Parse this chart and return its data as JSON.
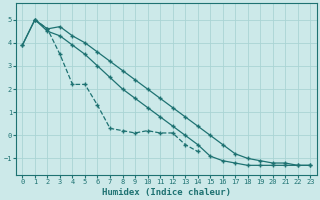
{
  "xlabel": "Humidex (Indice chaleur)",
  "xlim": [
    -0.5,
    23.5
  ],
  "ylim": [
    -1.7,
    5.7
  ],
  "yticks": [
    -1,
    0,
    1,
    2,
    3,
    4,
    5
  ],
  "xticks": [
    0,
    1,
    2,
    3,
    4,
    5,
    6,
    7,
    8,
    9,
    10,
    11,
    12,
    13,
    14,
    15,
    16,
    17,
    18,
    19,
    20,
    21,
    22,
    23
  ],
  "background_color": "#cce9e9",
  "grid_color": "#aad4d4",
  "line_color": "#1e7272",
  "line1_x": [
    0,
    1,
    2,
    3,
    4,
    5,
    6,
    7,
    8,
    9,
    10,
    11,
    12,
    13,
    14,
    15,
    16,
    17,
    18,
    19,
    20,
    21,
    22,
    23
  ],
  "line1_y": [
    3.9,
    5.0,
    4.6,
    4.7,
    4.3,
    4.0,
    3.6,
    3.2,
    2.8,
    2.4,
    2.0,
    1.6,
    1.2,
    0.8,
    0.4,
    0.0,
    -0.4,
    -0.8,
    -1.0,
    -1.1,
    -1.2,
    -1.2,
    -1.3,
    -1.3
  ],
  "line2_x": [
    0,
    1,
    2,
    3,
    4,
    5,
    6,
    7,
    8,
    9,
    10,
    11,
    12,
    13,
    14,
    15,
    16,
    17,
    18,
    19,
    20,
    21,
    22,
    23
  ],
  "line2_y": [
    3.9,
    5.0,
    4.5,
    4.3,
    3.9,
    3.5,
    3.0,
    2.5,
    2.0,
    1.6,
    1.2,
    0.8,
    0.4,
    0.0,
    -0.4,
    -0.9,
    -1.1,
    -1.2,
    -1.3,
    -1.3,
    -1.3,
    -1.3,
    -1.3,
    -1.3
  ],
  "line3_x": [
    1,
    2,
    3,
    4,
    5,
    6,
    7,
    8,
    9,
    10,
    11,
    12,
    13,
    14
  ],
  "line3_y": [
    5.0,
    4.6,
    3.5,
    2.2,
    2.2,
    1.3,
    0.3,
    0.2,
    0.1,
    0.2,
    0.1,
    0.1,
    -0.4,
    -0.7
  ],
  "line3_style": "--"
}
